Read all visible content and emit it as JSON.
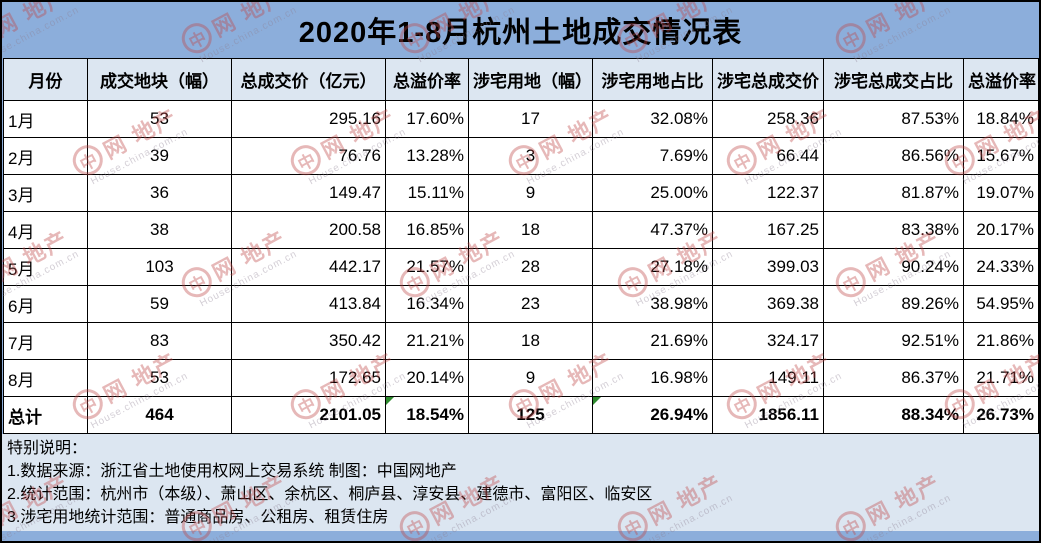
{
  "title": "2020年1-8月杭州土地成交情况表",
  "chart_data": {
    "type": "table",
    "title": "2020年1-8月杭州土地成交情况表",
    "columns": [
      {
        "label": "月份",
        "align": "left"
      },
      {
        "label": "成交地块（幅）",
        "align": "center"
      },
      {
        "label": "总成交价（亿元）",
        "align": "right"
      },
      {
        "label": "总溢价率",
        "align": "right"
      },
      {
        "label": "涉宅用地（幅）",
        "align": "center"
      },
      {
        "label": "涉宅用地占比",
        "align": "right"
      },
      {
        "label": "涉宅总成交价",
        "align": "right"
      },
      {
        "label": "涉宅总成交占比",
        "align": "right"
      },
      {
        "label": "总溢价率",
        "align": "right"
      }
    ],
    "rows": [
      {
        "shaded": false,
        "cells": [
          "1月",
          "53",
          "295.16",
          "17.60%",
          "17",
          "32.08%",
          "258.36",
          "87.53%",
          "18.84%"
        ]
      },
      {
        "shaded": false,
        "cells": [
          "2月",
          "39",
          "76.76",
          "13.28%",
          "3",
          "7.69%",
          "66.44",
          "86.56%",
          "15.67%"
        ]
      },
      {
        "shaded": true,
        "cells": [
          "3月",
          "36",
          "149.47",
          "15.11%",
          "9",
          "25.00%",
          "122.37",
          "81.87%",
          "19.07%"
        ]
      },
      {
        "shaded": true,
        "cells": [
          "4月",
          "38",
          "200.58",
          "16.85%",
          "18",
          "47.37%",
          "167.25",
          "83.38%",
          "20.17%"
        ]
      },
      {
        "shaded": false,
        "cells": [
          "5月",
          "103",
          "442.17",
          "21.57%",
          "28",
          "27.18%",
          "399.03",
          "90.24%",
          "24.33%"
        ]
      },
      {
        "shaded": true,
        "cells": [
          "6月",
          "59",
          "413.84",
          "16.34%",
          "23",
          "38.98%",
          "369.38",
          "89.26%",
          "54.95%"
        ]
      },
      {
        "shaded": true,
        "cells": [
          "7月",
          "83",
          "350.42",
          "21.21%",
          "18",
          "21.69%",
          "324.17",
          "92.51%",
          "21.86%"
        ]
      },
      {
        "shaded": false,
        "cells": [
          "8月",
          "53",
          "172.65",
          "20.14%",
          "9",
          "16.98%",
          "149.11",
          "86.37%",
          "21.71%"
        ]
      }
    ],
    "total": {
      "cells": [
        "总计",
        "464",
        "2101.05",
        "18.54%",
        "125",
        "26.94%",
        "1856.11",
        "88.34%",
        "26.73%"
      ],
      "error_flag_columns": [
        3,
        5
      ]
    }
  },
  "notes": {
    "heading": "特别说明：",
    "lines": [
      "1.数据来源：浙江省土地使用权网上交易系统 制图：中国网地产",
      "2.统计范围：杭州市（本级）、萧山区、余杭区、桐庐县、淳安县、建德市、富阳区、临安区",
      "3.涉宅用地统计范围：普通商品房、公租房、租赁住房"
    ]
  },
  "watermark": {
    "logo_char": "中",
    "brand": "网 地产",
    "site": "House.china.com.cn"
  },
  "colors": {
    "page_bg": "#8caedb",
    "header_bg": "#dce6f1",
    "row_shaded": "#d9e4f0",
    "row_plain": "#ffffff",
    "notes_bg": "#dce6f1",
    "border": "#000000",
    "error_flag_green": "#2e8b2e",
    "watermark_red": "#c04848"
  }
}
